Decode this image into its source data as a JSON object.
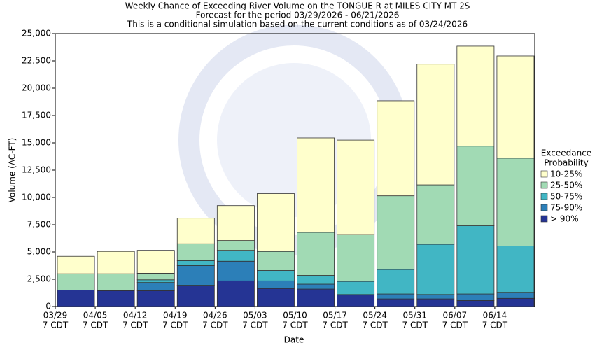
{
  "chart_data": {
    "type": "stacked_bar",
    "title": "Weekly Chance of Exceeding River Volume on the TONGUE R at MILES CITY MT 2S",
    "subtitle": [
      "Forecast for the period 03/29/2026 - 06/21/2026",
      "This is a conditional simulation based on the current conditions as of 03/24/2026"
    ],
    "x_label": "Date",
    "y_label": "Volume (AC-FT)",
    "legend_title": [
      "Exceedance",
      "Probability"
    ],
    "legend_position": "right",
    "categories": [
      [
        "03/29",
        "7 CDT"
      ],
      [
        "04/05",
        "7 CDT"
      ],
      [
        "04/12",
        "7 CDT"
      ],
      [
        "04/19",
        "7 CDT"
      ],
      [
        "04/26",
        "7 CDT"
      ],
      [
        "05/03",
        "7 CDT"
      ],
      [
        "05/10",
        "7 CDT"
      ],
      [
        "05/17",
        "7 CDT"
      ],
      [
        "05/24",
        "7 CDT"
      ],
      [
        "05/31",
        "7 CDT"
      ],
      [
        "06/07",
        "7 CDT"
      ],
      [
        "06/14",
        "7 CDT"
      ]
    ],
    "series": [
      {
        "name": "> 90%",
        "color": "#253494",
        "values": [
          1500,
          1450,
          1450,
          1950,
          2350,
          1650,
          1600,
          1050,
          700,
          700,
          550,
          750
        ]
      },
      {
        "name": "75-90%",
        "color": "#2c7fb8",
        "values": [
          0,
          0,
          750,
          1800,
          1800,
          700,
          450,
          50,
          450,
          400,
          600,
          550
        ]
      },
      {
        "name": "50-75%",
        "color": "#41b6c4",
        "values": [
          0,
          0,
          250,
          450,
          1000,
          950,
          800,
          1200,
          2250,
          4600,
          6250,
          4250
        ]
      },
      {
        "name": "25-50%",
        "color": "#a1dab4",
        "values": [
          1500,
          1550,
          600,
          1550,
          900,
          1750,
          3950,
          4300,
          6750,
          5450,
          7300,
          8050
        ]
      },
      {
        "name": "10-25%",
        "color": "#ffffcc",
        "values": [
          1600,
          2050,
          2100,
          2350,
          3200,
          5300,
          8650,
          8650,
          8700,
          11050,
          9150,
          9350
        ]
      }
    ],
    "ylim": [
      0,
      25000
    ],
    "yticks": [
      0,
      {
        "value": 2500,
        "label": "2,500"
      },
      {
        "value": 5000,
        "label": "5,000"
      },
      {
        "value": 7500,
        "label": "7,500"
      },
      {
        "value": 10000,
        "label": "10,000"
      },
      {
        "value": 12500,
        "label": "12,500"
      },
      {
        "value": 15000,
        "label": "15,000"
      },
      {
        "value": 17500,
        "label": "17,500"
      },
      {
        "value": 20000,
        "label": "20,000"
      },
      {
        "value": 22500,
        "label": "22,500"
      },
      {
        "value": 25000,
        "label": "25,000"
      }
    ],
    "grid": false
  }
}
